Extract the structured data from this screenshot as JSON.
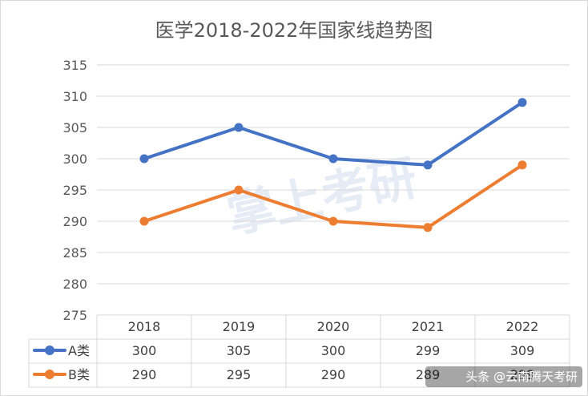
{
  "chart_data": {
    "type": "line",
    "title": "医学2018-2022年国家线趋势图",
    "categories": [
      "2018",
      "2019",
      "2020",
      "2021",
      "2022"
    ],
    "ylim": [
      275,
      315
    ],
    "y_ticks": [
      "275",
      "280",
      "285",
      "290",
      "295",
      "300",
      "305",
      "310",
      "315"
    ],
    "grid": true,
    "legend_placement": "data-table",
    "series": [
      {
        "name": "A类",
        "values": [
          300,
          305,
          300,
          299,
          309
        ],
        "color": "#4472c4"
      },
      {
        "name": "B类",
        "values": [
          290,
          295,
          290,
          289,
          299
        ],
        "color": "#ed7d31"
      }
    ]
  },
  "watermark": "掌上考研",
  "credit": "头条 @云南腾天考研"
}
